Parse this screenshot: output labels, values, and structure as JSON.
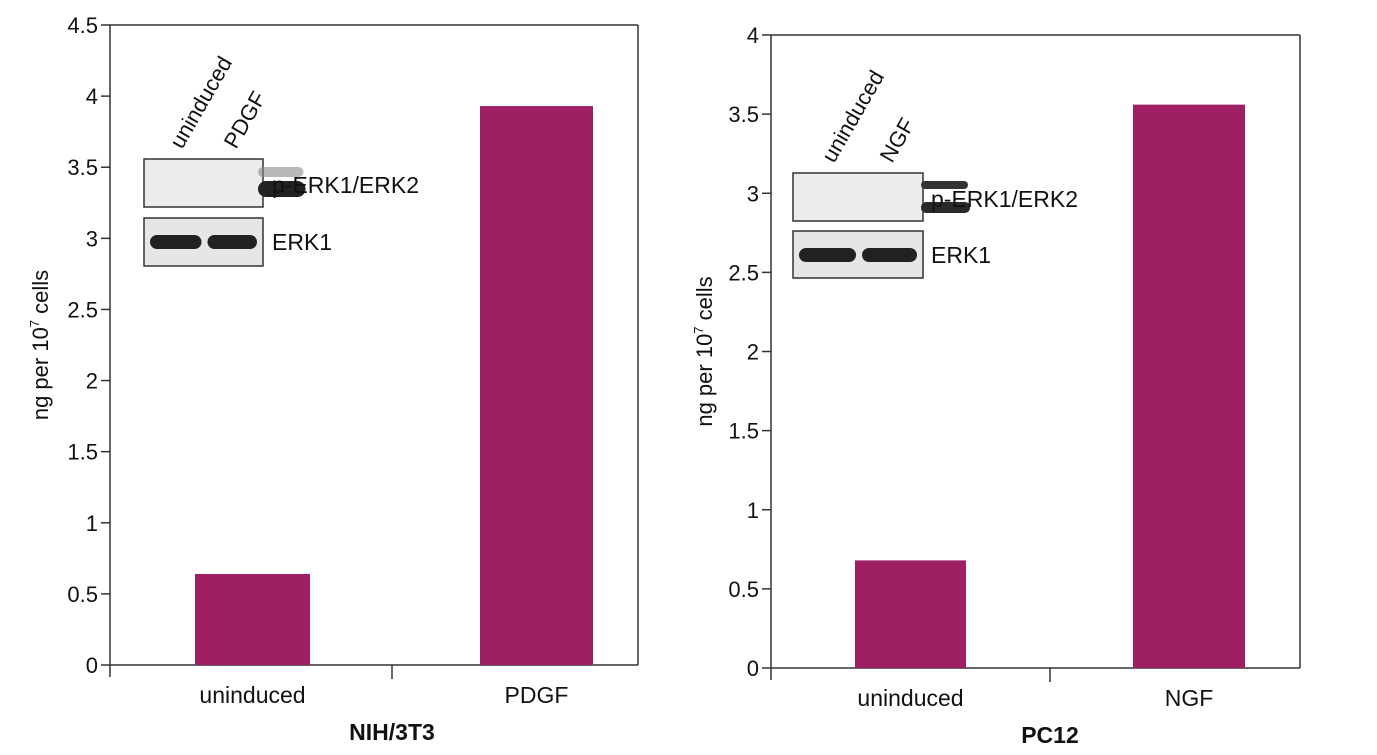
{
  "bar_color": "#9e1f63",
  "chart_data": [
    {
      "type": "bar",
      "title": "NIH/3T3",
      "xlabel": "NIH/3T3",
      "ylabel": "ng per 10",
      "ylabel_sup": "7",
      "ylabel_suffix": " cells",
      "categories": [
        "uninduced",
        "PDGF"
      ],
      "values": [
        0.64,
        3.93
      ],
      "ylim": [
        0,
        4.5
      ],
      "yticks": [
        "0",
        "0.5",
        "1",
        "1.5",
        "2",
        "2.5",
        "3",
        "3.5",
        "4",
        "4.5"
      ],
      "inset": {
        "lanes": [
          "uninduced",
          "PDGF"
        ],
        "rows": [
          "p-ERK1/ERK2",
          "ERK1"
        ]
      }
    },
    {
      "type": "bar",
      "title": "PC12",
      "xlabel": "PC12",
      "ylabel": "ng per 10",
      "ylabel_sup": "7",
      "ylabel_suffix": " cells",
      "categories": [
        "uninduced",
        "NGF"
      ],
      "values": [
        0.68,
        3.56
      ],
      "ylim": [
        0,
        4
      ],
      "yticks": [
        "0",
        "0.5",
        "1",
        "1.5",
        "2",
        "2.5",
        "3",
        "3.5",
        "4"
      ],
      "inset": {
        "lanes": [
          "uninduced",
          "NGF"
        ],
        "rows": [
          "p-ERK1/ERK2",
          "ERK1"
        ]
      }
    }
  ]
}
